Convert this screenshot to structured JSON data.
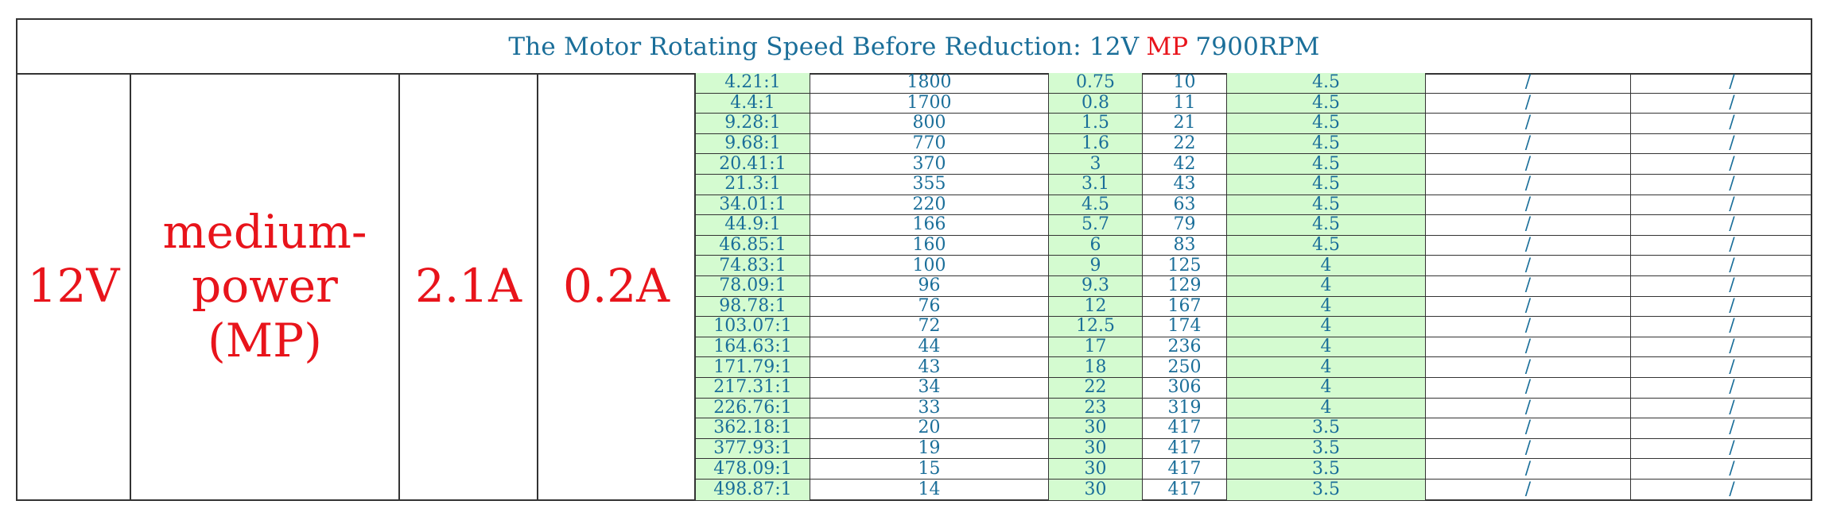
{
  "header": {
    "prefix": "The Motor Rotating Speed Before Reduction: 12V",
    "highlight": "MP",
    "suffix": "7900RPM"
  },
  "left": {
    "voltage": "12V",
    "power": "medium-\npower\n(MP)",
    "current_a": "2.1A",
    "current_b": "0.2A"
  },
  "rows": [
    [
      "4.21:1",
      "1800",
      "0.75",
      "10",
      "4.5",
      "/",
      "/"
    ],
    [
      "4.4:1",
      "1700",
      "0.8",
      "11",
      "4.5",
      "/",
      "/"
    ],
    [
      "9.28:1",
      "800",
      "1.5",
      "21",
      "4.5",
      "/",
      "/"
    ],
    [
      "9.68:1",
      "770",
      "1.6",
      "22",
      "4.5",
      "/",
      "/"
    ],
    [
      "20.41:1",
      "370",
      "3",
      "42",
      "4.5",
      "/",
      "/"
    ],
    [
      "21.3:1",
      "355",
      "3.1",
      "43",
      "4.5",
      "/",
      "/"
    ],
    [
      "34.01:1",
      "220",
      "4.5",
      "63",
      "4.5",
      "/",
      "/"
    ],
    [
      "44.9:1",
      "166",
      "5.7",
      "79",
      "4.5",
      "/",
      "/"
    ],
    [
      "46.85:1",
      "160",
      "6",
      "83",
      "4.5",
      "/",
      "/"
    ],
    [
      "74.83:1",
      "100",
      "9",
      "125",
      "4",
      "/",
      "/"
    ],
    [
      "78.09:1",
      "96",
      "9.3",
      "129",
      "4",
      "/",
      "/"
    ],
    [
      "98.78:1",
      "76",
      "12",
      "167",
      "4",
      "/",
      "/"
    ],
    [
      "103.07:1",
      "72",
      "12.5",
      "174",
      "4",
      "/",
      "/"
    ],
    [
      "164.63:1",
      "44",
      "17",
      "236",
      "4",
      "/",
      "/"
    ],
    [
      "171.79:1",
      "43",
      "18",
      "250",
      "4",
      "/",
      "/"
    ],
    [
      "217.31:1",
      "34",
      "22",
      "306",
      "4",
      "/",
      "/"
    ],
    [
      "226.76:1",
      "33",
      "23",
      "319",
      "4",
      "/",
      "/"
    ],
    [
      "362.18:1",
      "20",
      "30",
      "417",
      "3.5",
      "/",
      "/"
    ],
    [
      "377.93:1",
      "19",
      "30",
      "417",
      "3.5",
      "/",
      "/"
    ],
    [
      "478.09:1",
      "15",
      "30",
      "417",
      "3.5",
      "/",
      "/"
    ],
    [
      "498.87:1",
      "14",
      "30",
      "417",
      "3.5",
      "/",
      "/"
    ]
  ]
}
